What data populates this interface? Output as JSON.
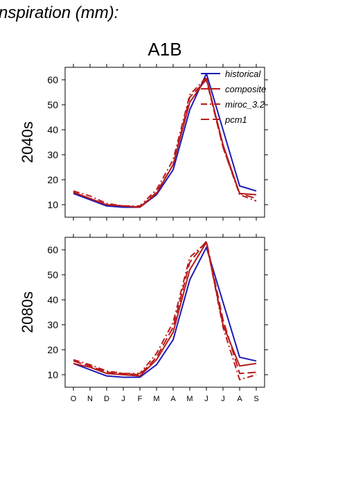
{
  "figure": {
    "header_text": "nspiration (mm):",
    "scenario": "A1B"
  },
  "colors": {
    "historical": "#1a1ab8",
    "projection": "#b81a1a",
    "axis": "#000000"
  },
  "legend": {
    "placement": "top-right",
    "entries": [
      "historical",
      "composite",
      "miroc_3.2",
      "pcm1"
    ]
  },
  "chart_data": [
    {
      "type": "line",
      "panel_label": "2040s",
      "categories": [
        "O",
        "N",
        "D",
        "J",
        "F",
        "M",
        "A",
        "M",
        "J",
        "J",
        "A",
        "S"
      ],
      "ylim": [
        5,
        65
      ],
      "yticks": [
        10,
        20,
        30,
        40,
        50,
        60
      ],
      "grid": false,
      "series": [
        {
          "name": "historical",
          "style": "solid",
          "values": [
            14.5,
            12,
            9.5,
            9,
            9,
            14,
            24,
            48,
            62.5,
            40,
            17.5,
            15.5
          ]
        },
        {
          "name": "composite",
          "style": "solid",
          "values": [
            15,
            12.5,
            10,
            9.5,
            9,
            14.5,
            26,
            51,
            60.5,
            34,
            14.5,
            14
          ]
        },
        {
          "name": "miroc_3.2",
          "style": "dashdot",
          "values": [
            15.5,
            13.5,
            10.5,
            9.5,
            9.5,
            16,
            28,
            54,
            61,
            33,
            14,
            11.5
          ]
        },
        {
          "name": "pcm1",
          "style": "dashed",
          "values": [
            15,
            12.5,
            10,
            9.5,
            9,
            15,
            26,
            53,
            60,
            33,
            14.5,
            12.5
          ]
        }
      ]
    },
    {
      "type": "line",
      "panel_label": "2080s",
      "categories": [
        "O",
        "N",
        "D",
        "J",
        "F",
        "M",
        "A",
        "M",
        "J",
        "J",
        "A",
        "S"
      ],
      "ylim": [
        5,
        65
      ],
      "yticks": [
        10,
        20,
        30,
        40,
        50,
        60
      ],
      "grid": false,
      "series": [
        {
          "name": "historical",
          "style": "solid",
          "values": [
            14.5,
            12,
            9.5,
            9,
            9,
            14,
            24,
            48,
            61,
            39,
            17,
            15.5
          ]
        },
        {
          "name": "composite",
          "style": "solid",
          "values": [
            14.5,
            13,
            10.5,
            10,
            9.5,
            16,
            27,
            52,
            63,
            30,
            13.5,
            14.5
          ]
        },
        {
          "name": "miroc_3.2",
          "style": "dashdot",
          "values": [
            16,
            14,
            11.5,
            10.5,
            10.5,
            18.5,
            31,
            57,
            63,
            29,
            8,
            10
          ]
        },
        {
          "name": "pcm1",
          "style": "dashed",
          "values": [
            15.5,
            13.5,
            11,
            10.5,
            10,
            17,
            29,
            55,
            63.5,
            32,
            10.5,
            11
          ]
        }
      ]
    }
  ]
}
